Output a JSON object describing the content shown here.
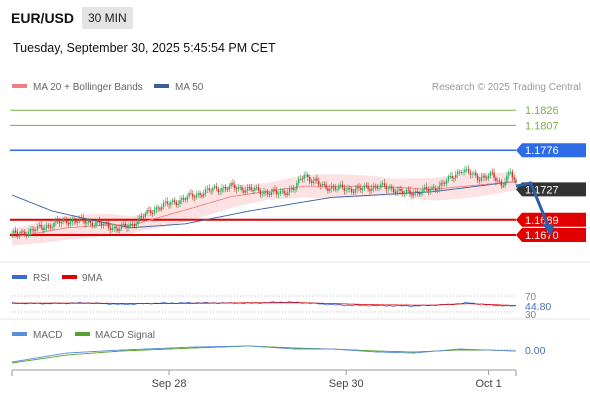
{
  "header": {
    "symbol": "EUR/USD",
    "timeframe": "30 MIN",
    "timestamp": "Tuesday, September 30, 2025 5:45:54 PM CET"
  },
  "credit": "Research © 2025 Trading Central",
  "colors": {
    "up": "#27ae60",
    "down": "#c0392b",
    "ma20": "#f08080",
    "ma50": "#3a5f9a",
    "band": "#fbd5d5",
    "target": "#7cb342",
    "pivot": "#2e6be6",
    "support": "#e00000",
    "price": "#333333",
    "rsi": "#3b6bd6",
    "rsi_ma": "#e00000",
    "macd": "#5a8de0",
    "macd_signal": "#5aa02c",
    "arrow": "#2b5fa8"
  },
  "chart_data": [
    {
      "type": "candlestick",
      "legend": [
        "MA 20 + Bollinger Bands",
        "MA 50"
      ],
      "x_ticks": [
        "Sep 28",
        "Sep 30",
        "Oct 1"
      ],
      "ylim": [
        1.1645,
        1.1845
      ],
      "levels": [
        {
          "label": "1.1826",
          "value": 1.1826,
          "kind": "target"
        },
        {
          "label": "1.1807",
          "value": 1.1807,
          "kind": "target"
        },
        {
          "label": "1.1776",
          "value": 1.1776,
          "kind": "pivot"
        },
        {
          "label": "1.1727",
          "value": 1.1727,
          "kind": "price"
        },
        {
          "label": "1.1689",
          "value": 1.1689,
          "kind": "support"
        },
        {
          "label": "1.1670",
          "value": 1.167,
          "kind": "support"
        }
      ],
      "price_anchors": [
        [
          0,
          1.167
        ],
        [
          10,
          1.1675
        ],
        [
          20,
          1.1682
        ],
        [
          30,
          1.1688
        ],
        [
          40,
          1.1687
        ],
        [
          50,
          1.1683
        ],
        [
          58,
          1.1678
        ],
        [
          65,
          1.1682
        ],
        [
          72,
          1.1694
        ],
        [
          80,
          1.1705
        ],
        [
          90,
          1.1712
        ],
        [
          100,
          1.172
        ],
        [
          110,
          1.1727
        ],
        [
          120,
          1.173
        ],
        [
          130,
          1.1727
        ],
        [
          138,
          1.1724
        ],
        [
          145,
          1.1722
        ],
        [
          150,
          1.1725
        ],
        [
          155,
          1.1728
        ],
        [
          160,
          1.1747
        ],
        [
          163,
          1.174
        ],
        [
          170,
          1.1731
        ],
        [
          180,
          1.1728
        ],
        [
          190,
          1.1727
        ],
        [
          200,
          1.1731
        ],
        [
          210,
          1.1727
        ],
        [
          215,
          1.1722
        ],
        [
          222,
          1.1724
        ],
        [
          230,
          1.1727
        ],
        [
          240,
          1.174
        ],
        [
          246,
          1.1752
        ],
        [
          255,
          1.1742
        ],
        [
          263,
          1.1744
        ],
        [
          268,
          1.1733
        ],
        [
          273,
          1.1749
        ],
        [
          276,
          1.1731
        ]
      ],
      "ma20_anchors": [
        [
          0,
          1.1667
        ],
        [
          30,
          1.1679
        ],
        [
          55,
          1.1683
        ],
        [
          65,
          1.1682
        ],
        [
          90,
          1.1698
        ],
        [
          120,
          1.1718
        ],
        [
          160,
          1.1731
        ],
        [
          200,
          1.1731
        ],
        [
          230,
          1.1727
        ],
        [
          276,
          1.1737
        ]
      ],
      "ma50_anchors": [
        [
          0,
          1.172
        ],
        [
          22,
          1.17
        ],
        [
          45,
          1.1688
        ],
        [
          65,
          1.1679
        ],
        [
          95,
          1.1684
        ],
        [
          130,
          1.17
        ],
        [
          175,
          1.1717
        ],
        [
          230,
          1.1724
        ],
        [
          276,
          1.1737
        ]
      ],
      "bb_width": 0.0013,
      "forecast_arrow": [
        [
          276,
          1.1731
        ],
        [
          284,
          1.1735
        ],
        [
          295,
          1.167
        ]
      ]
    },
    {
      "type": "line",
      "legend": [
        "RSI",
        "9MA"
      ],
      "levels": [
        "70",
        "30"
      ],
      "last_label": "44.80",
      "ylim": [
        30,
        70
      ],
      "rsi_anchors": [
        [
          0,
          52
        ],
        [
          20,
          51
        ],
        [
          40,
          53
        ],
        [
          60,
          49
        ],
        [
          80,
          52
        ],
        [
          100,
          53
        ],
        [
          130,
          52
        ],
        [
          150,
          55
        ],
        [
          160,
          53
        ],
        [
          180,
          47
        ],
        [
          200,
          46
        ],
        [
          220,
          45
        ],
        [
          240,
          49
        ],
        [
          250,
          53
        ],
        [
          260,
          48
        ],
        [
          268,
          46
        ],
        [
          276,
          45
        ]
      ],
      "rsi_ma_anchors": [
        [
          0,
          52
        ],
        [
          40,
          52
        ],
        [
          80,
          51
        ],
        [
          130,
          53
        ],
        [
          160,
          53
        ],
        [
          200,
          48
        ],
        [
          230,
          47
        ],
        [
          250,
          51
        ],
        [
          276,
          46
        ]
      ]
    },
    {
      "type": "line",
      "legend": [
        "MACD",
        "MACD Signal"
      ],
      "last_label": "0.00",
      "ylim": [
        -0.0016,
        0.0008
      ],
      "macd_anchors": [
        [
          0,
          -0.0012
        ],
        [
          30,
          -0.0003
        ],
        [
          60,
          0.0
        ],
        [
          100,
          0.0003
        ],
        [
          130,
          0.0004
        ],
        [
          155,
          0.0001
        ],
        [
          175,
          0.0001
        ],
        [
          200,
          -0.0002
        ],
        [
          220,
          -0.0003
        ],
        [
          245,
          0.0001
        ],
        [
          260,
          0.0
        ],
        [
          276,
          -0.0001
        ]
      ],
      "signal_anchors": [
        [
          0,
          -0.0013
        ],
        [
          30,
          -0.0005
        ],
        [
          60,
          -0.0001
        ],
        [
          100,
          0.0002
        ],
        [
          130,
          0.0004
        ],
        [
          155,
          0.0002
        ],
        [
          175,
          0.0001
        ],
        [
          200,
          -0.0001
        ],
        [
          220,
          -0.0002
        ],
        [
          245,
          0.0
        ],
        [
          260,
          0.0
        ],
        [
          276,
          -0.0001
        ]
      ]
    }
  ]
}
